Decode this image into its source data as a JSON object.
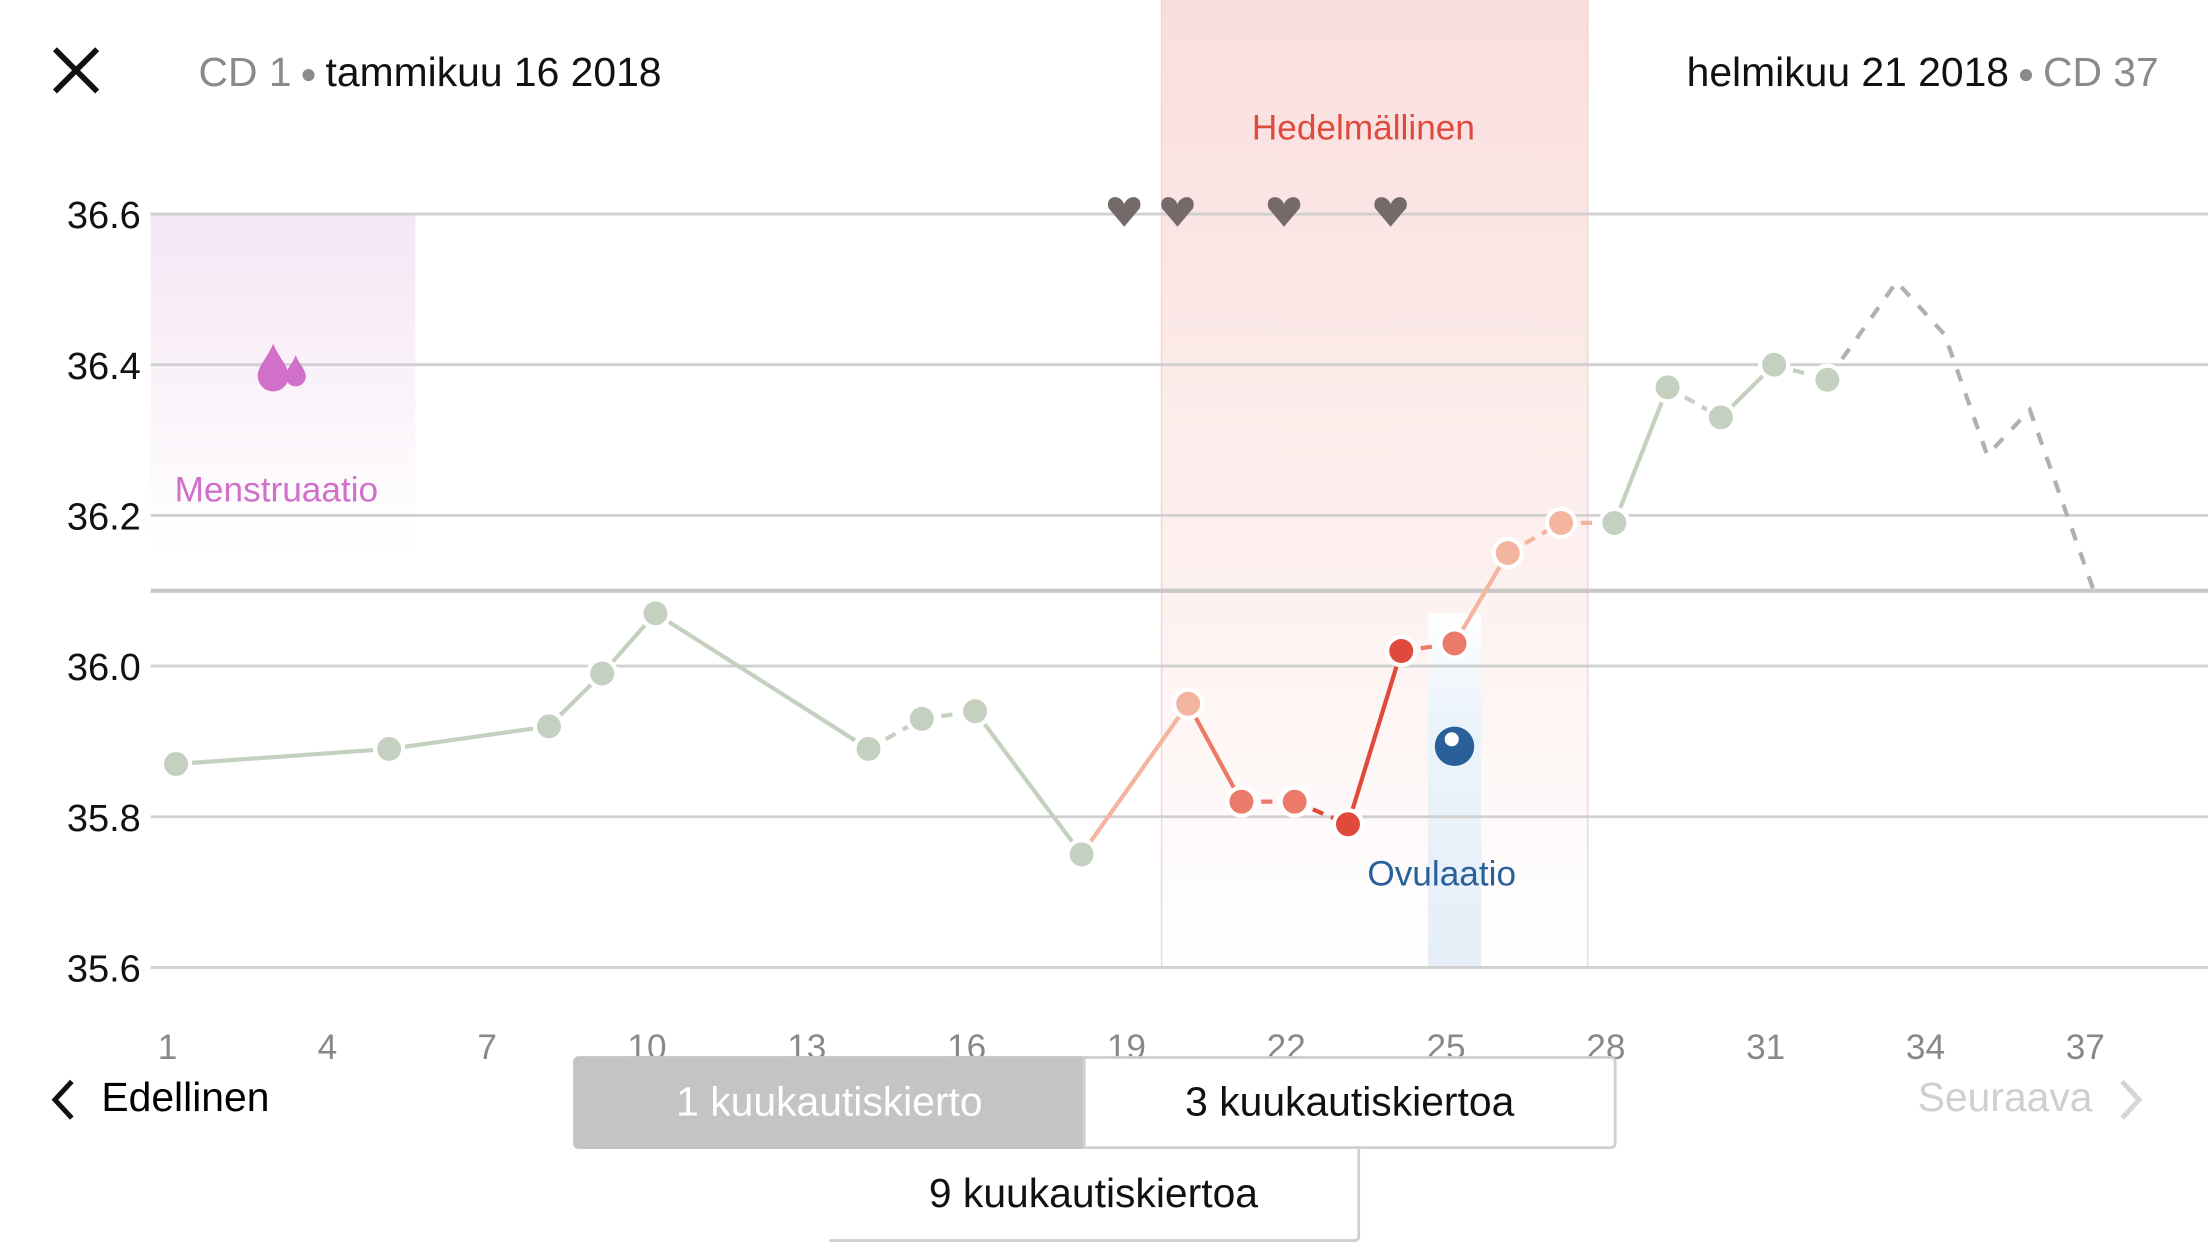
{
  "header": {
    "start_cd": "CD 1",
    "start_date": "tammikuu 16 2018",
    "end_date": "helmikuu 21 2018",
    "end_cd": "CD 37",
    "close_icon": "close-icon"
  },
  "labels": {
    "fertile": "Hedelmällinen",
    "menstruation": "Menstruaatio",
    "ovulation": "Ovulaatio"
  },
  "colors": {
    "baseline": "#c5d1c0",
    "fertile_text": "#e04a3c",
    "menstruation": "#d070c8",
    "ovulation": "#2a6099",
    "hearts": "#756a6a",
    "predicted": "#b0b0b0"
  },
  "chart_data": {
    "type": "line",
    "xlabel": "",
    "ylabel": "",
    "xlim": [
      1,
      38
    ],
    "ylim": [
      35.6,
      36.6
    ],
    "x_ticks": [
      "1",
      "4",
      "7",
      "10",
      "13",
      "16",
      "19",
      "22",
      "25",
      "28",
      "31",
      "34",
      "37"
    ],
    "y_ticks": [
      "36.6",
      "36.4",
      "36.2",
      "36.0",
      "35.8",
      "35.6"
    ],
    "coverline": 36.1,
    "fertile_window": [
      19.5,
      27.5
    ],
    "menstruation_days": [
      1,
      5
    ],
    "ovulation_day": 25,
    "intercourse_days": [
      18.8,
      19.8,
      21.8,
      23.8
    ],
    "temperatures": [
      {
        "day": 1,
        "temp": 35.87,
        "phase": "normal"
      },
      {
        "day": 5,
        "temp": 35.89,
        "phase": "normal"
      },
      {
        "day": 8,
        "temp": 35.92,
        "phase": "normal"
      },
      {
        "day": 9,
        "temp": 35.99,
        "phase": "normal"
      },
      {
        "day": 10,
        "temp": 36.07,
        "phase": "normal"
      },
      {
        "day": 14,
        "temp": 35.89,
        "phase": "normal"
      },
      {
        "day": 15,
        "temp": 35.93,
        "phase": "normal"
      },
      {
        "day": 16,
        "temp": 35.94,
        "phase": "normal"
      },
      {
        "day": 18,
        "temp": 35.75,
        "phase": "normal"
      },
      {
        "day": 20,
        "temp": 35.95,
        "phase": "fertile-low"
      },
      {
        "day": 21,
        "temp": 35.82,
        "phase": "fertile-mid"
      },
      {
        "day": 22,
        "temp": 35.82,
        "phase": "fertile-mid"
      },
      {
        "day": 23,
        "temp": 35.79,
        "phase": "fertile-high"
      },
      {
        "day": 24,
        "temp": 36.02,
        "phase": "fertile-high"
      },
      {
        "day": 25,
        "temp": 36.03,
        "phase": "fertile-mid"
      },
      {
        "day": 26,
        "temp": 36.15,
        "phase": "fertile-low"
      },
      {
        "day": 27,
        "temp": 36.19,
        "phase": "fertile-low"
      },
      {
        "day": 28,
        "temp": 36.19,
        "phase": "normal"
      },
      {
        "day": 29,
        "temp": 36.37,
        "phase": "normal"
      },
      {
        "day": 30,
        "temp": 36.33,
        "phase": "normal"
      },
      {
        "day": 31,
        "temp": 36.4,
        "phase": "normal"
      },
      {
        "day": 32,
        "temp": 36.38,
        "phase": "normal"
      }
    ],
    "predicted": [
      {
        "day": 32,
        "temp": 36.38
      },
      {
        "day": 33.3,
        "temp": 36.51
      },
      {
        "day": 34.2,
        "temp": 36.44
      },
      {
        "day": 35,
        "temp": 36.28
      },
      {
        "day": 35.8,
        "temp": 36.34
      },
      {
        "day": 37,
        "temp": 36.1
      }
    ]
  },
  "footer": {
    "prev": "Edellinen",
    "next": "Seuraava",
    "seg1": "1 kuukautiskierto",
    "seg3": "3 kuukautiskiertoa",
    "seg9": "9 kuukautiskiertoa"
  }
}
